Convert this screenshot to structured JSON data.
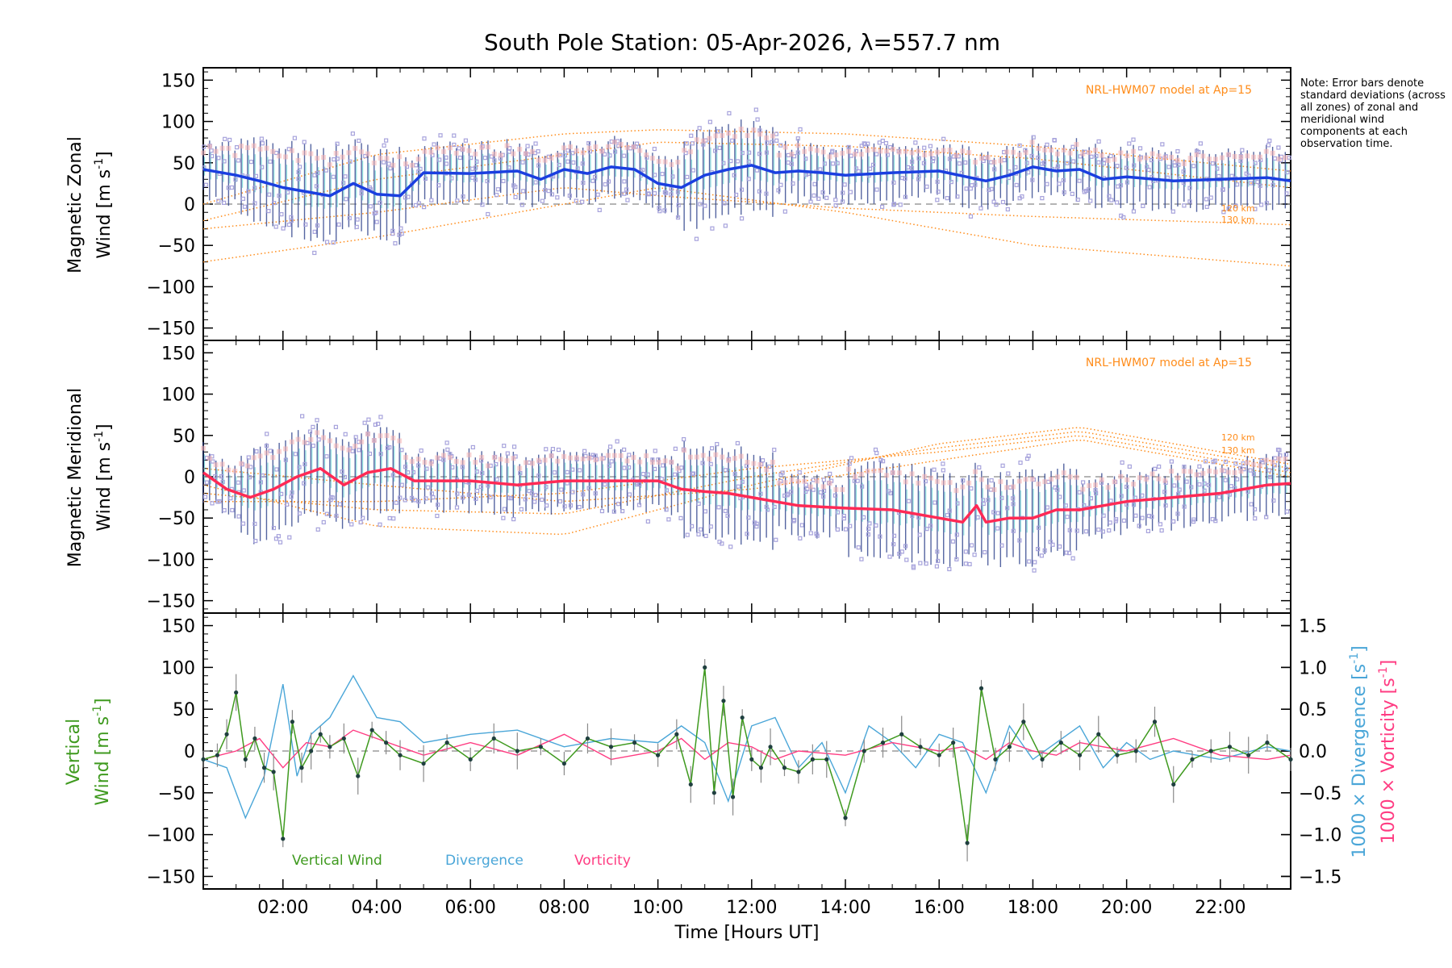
{
  "title": "South Pole Station: 05-Apr-2026, λ=557.7 nm",
  "note": "Note: Error bars denote standard deviations (across all zones) of zonal and meridional wind components at each observation time.",
  "colors": {
    "zonal_mean": "#1a3fe0",
    "meridional_mean": "#ff2a55",
    "vertical": "#3f9a1f",
    "divergence": "#4aa6d8",
    "vorticity": "#ff3c82",
    "model": "#ff8c1a",
    "scatter": "#a7a3dc"
  },
  "chart_data": [
    {
      "type": "line",
      "panel": "zonal",
      "ylabel_line1": "Magnetic Zonal",
      "ylabel_line2": "Wind [m s",
      "ylabel_exp": "-1",
      "ylabel_close": "]",
      "ylim": [
        -165,
        165
      ],
      "yticks": [
        150,
        100,
        50,
        0,
        -50,
        -100,
        -150
      ],
      "model_label": "NRL-HWM07 model at Ap=15",
      "model_alt_labels": [
        "120 km",
        "130 km"
      ],
      "model_curves": [
        {
          "x": [
            0.3,
            4,
            8,
            10,
            14,
            18,
            23.5
          ],
          "y": [
            0,
            60,
            85,
            90,
            85,
            70,
            40
          ]
        },
        {
          "x": [
            0.3,
            4,
            8,
            10,
            14,
            18,
            23.5
          ],
          "y": [
            -20,
            30,
            60,
            75,
            70,
            55,
            20
          ]
        },
        {
          "x": [
            0.3,
            4,
            8,
            10,
            14,
            18,
            23.5
          ],
          "y": [
            -70,
            -40,
            0,
            20,
            -10,
            -50,
            -75
          ]
        },
        {
          "x": [
            0.3,
            4,
            8,
            10,
            14,
            18,
            23.5
          ],
          "y": [
            -30,
            -10,
            20,
            10,
            -5,
            -15,
            -25
          ]
        }
      ],
      "mean": {
        "x": [
          0.3,
          1.0,
          1.5,
          2.0,
          2.5,
          3.0,
          3.5,
          4.0,
          4.5,
          5.0,
          6.0,
          7.0,
          7.5,
          8.0,
          8.5,
          9.0,
          9.5,
          10.0,
          10.5,
          11.0,
          11.5,
          12.0,
          12.5,
          13.0,
          13.5,
          14.0,
          15.0,
          16.0,
          17.0,
          17.5,
          18.0,
          18.5,
          19.0,
          19.5,
          20.0,
          21.0,
          22.0,
          23.0,
          23.5
        ],
        "y": [
          42,
          35,
          28,
          20,
          15,
          10,
          25,
          12,
          10,
          38,
          37,
          40,
          30,
          42,
          37,
          45,
          42,
          25,
          20,
          35,
          42,
          47,
          38,
          40,
          38,
          35,
          38,
          40,
          28,
          35,
          45,
          40,
          42,
          30,
          33,
          28,
          30,
          32,
          28
        ]
      }
    },
    {
      "type": "line",
      "panel": "meridional",
      "ylabel_line1": "Magnetic Meridional",
      "ylabel_line2": "Wind [m s",
      "ylabel_exp": "-1",
      "ylabel_close": "]",
      "ylim": [
        -165,
        165
      ],
      "yticks": [
        150,
        100,
        50,
        0,
        -50,
        -100,
        -150
      ],
      "model_label": "NRL-HWM07 model at Ap=15",
      "model_alt_labels": [
        "120 km",
        "130 km"
      ],
      "model_curves": [
        {
          "x": [
            0.3,
            4,
            8,
            12,
            16,
            19,
            23.5
          ],
          "y": [
            -10,
            -60,
            -70,
            -10,
            40,
            60,
            15
          ]
        },
        {
          "x": [
            0.3,
            4,
            8,
            12,
            16,
            19,
            23.5
          ],
          "y": [
            -20,
            -40,
            -45,
            0,
            35,
            55,
            10
          ]
        },
        {
          "x": [
            0.3,
            4,
            8,
            12,
            16,
            19,
            23.5
          ],
          "y": [
            -30,
            -30,
            -20,
            10,
            30,
            50,
            5
          ]
        },
        {
          "x": [
            0.3,
            4,
            8,
            12,
            16,
            19,
            23.5
          ],
          "y": [
            10,
            -10,
            -30,
            -15,
            20,
            45,
            0
          ]
        }
      ],
      "mean": {
        "x": [
          0.3,
          0.8,
          1.3,
          1.8,
          2.3,
          2.8,
          3.3,
          3.8,
          4.3,
          4.8,
          6.0,
          7.0,
          8.0,
          9.0,
          10.0,
          10.5,
          11.0,
          11.5,
          12.0,
          13.0,
          14.0,
          15.0,
          16.0,
          16.5,
          16.8,
          17.0,
          17.5,
          18.0,
          18.5,
          19.0,
          19.5,
          20.0,
          21.0,
          22.0,
          22.5,
          23.0,
          23.5
        ],
        "y": [
          5,
          -15,
          -25,
          -15,
          0,
          10,
          -10,
          5,
          10,
          -5,
          -5,
          -10,
          -5,
          -5,
          -5,
          -15,
          -18,
          -20,
          -25,
          -35,
          -38,
          -40,
          -50,
          -55,
          -35,
          -55,
          -50,
          -50,
          -40,
          -40,
          -35,
          -30,
          -25,
          -20,
          -15,
          -10,
          -8
        ]
      }
    },
    {
      "type": "line",
      "panel": "vertical",
      "ylabel_line1": "Vertical",
      "ylabel_line2": "Wind [m s",
      "ylabel_exp": "-1",
      "ylabel_close": "]",
      "ylim": [
        -165,
        165
      ],
      "yticks": [
        150,
        100,
        50,
        0,
        -50,
        -100,
        -150
      ],
      "y2label_a": "1000 × Divergence [s",
      "y2label_b": "1000 × Vorticity [s",
      "y2label_exp": "-1",
      "y2label_close": "]",
      "y2ticks": [
        "1.5",
        "1.0",
        "0.5",
        "0.0",
        "−0.5",
        "−1.0",
        "−1.5"
      ],
      "y2ticks_values": [
        1.5,
        1.0,
        0.5,
        0.0,
        -0.5,
        -1.0,
        -1.5
      ],
      "legend": [
        "Vertical Wind",
        "Divergence",
        "Vorticity"
      ],
      "vertical": {
        "x": [
          0.3,
          0.6,
          0.8,
          1.0,
          1.2,
          1.4,
          1.6,
          1.8,
          2.0,
          2.2,
          2.4,
          2.6,
          2.8,
          3.0,
          3.3,
          3.6,
          3.9,
          4.2,
          4.5,
          5.0,
          5.5,
          6.0,
          6.5,
          7.0,
          7.5,
          8.0,
          8.5,
          9.0,
          9.5,
          10.0,
          10.4,
          10.7,
          11.0,
          11.2,
          11.4,
          11.6,
          11.8,
          12.0,
          12.2,
          12.4,
          12.7,
          13.0,
          13.3,
          13.6,
          14.0,
          14.4,
          14.8,
          15.2,
          15.6,
          16.0,
          16.3,
          16.6,
          16.9,
          17.2,
          17.5,
          17.8,
          18.2,
          18.6,
          19.0,
          19.4,
          19.8,
          20.2,
          20.6,
          21.0,
          21.4,
          21.8,
          22.2,
          22.6,
          23.0,
          23.5
        ],
        "y": [
          -10,
          -5,
          20,
          70,
          -10,
          15,
          -20,
          -25,
          -105,
          35,
          -20,
          0,
          20,
          5,
          15,
          -30,
          25,
          10,
          -5,
          -15,
          10,
          -10,
          15,
          0,
          5,
          -15,
          15,
          5,
          10,
          -5,
          20,
          -40,
          100,
          -50,
          60,
          -55,
          40,
          -10,
          -20,
          5,
          -20,
          -25,
          -10,
          -10,
          -80,
          0,
          10,
          20,
          5,
          -5,
          10,
          -110,
          75,
          -10,
          5,
          35,
          -10,
          10,
          -5,
          20,
          -5,
          0,
          35,
          -40,
          -10,
          0,
          5,
          -5,
          10,
          -10
        ]
      },
      "divergence": {
        "x": [
          0.3,
          0.8,
          1.2,
          1.6,
          2.0,
          2.3,
          2.6,
          3.0,
          3.5,
          4.0,
          4.5,
          5.0,
          6.0,
          7.0,
          8.0,
          9.0,
          10.0,
          10.5,
          11.0,
          11.5,
          12.0,
          12.5,
          13.0,
          13.5,
          14.0,
          14.5,
          15.0,
          15.5,
          16.0,
          16.5,
          17.0,
          17.5,
          18.0,
          18.5,
          19.0,
          19.5,
          20.0,
          20.5,
          21.0,
          22.0,
          23.0,
          23.5
        ],
        "y": [
          -0.1,
          -0.2,
          -0.8,
          -0.3,
          0.8,
          -0.3,
          0.2,
          0.4,
          0.9,
          0.4,
          0.35,
          0.1,
          0.2,
          0.25,
          0.05,
          0.15,
          0.1,
          0.3,
          0.1,
          -0.6,
          0.3,
          0.4,
          -0.2,
          0.1,
          -0.5,
          0.3,
          0.1,
          -0.2,
          0.2,
          0.1,
          -0.5,
          0.3,
          -0.1,
          0.1,
          0.3,
          -0.2,
          0.1,
          -0.1,
          0.0,
          -0.1,
          0.05,
          0.0
        ]
      },
      "vorticity": {
        "x": [
          0.3,
          1.0,
          1.5,
          2.0,
          2.5,
          3.0,
          3.5,
          4.0,
          5.0,
          6.0,
          7.0,
          8.0,
          9.0,
          10.0,
          10.5,
          11.0,
          11.5,
          12.0,
          12.5,
          13.0,
          14.0,
          15.0,
          16.0,
          16.5,
          17.0,
          17.5,
          18.0,
          18.5,
          19.0,
          20.0,
          21.0,
          22.0,
          23.0,
          23.5
        ],
        "y": [
          -0.1,
          0.0,
          0.15,
          -0.2,
          0.1,
          0.05,
          0.25,
          0.15,
          -0.05,
          0.1,
          -0.05,
          0.2,
          -0.1,
          0.0,
          0.15,
          -0.1,
          0.1,
          0.05,
          -0.1,
          0.0,
          -0.05,
          0.1,
          0.0,
          0.05,
          -0.1,
          0.1,
          0.0,
          -0.05,
          0.1,
          0.0,
          0.15,
          -0.05,
          -0.1,
          -0.05
        ]
      }
    }
  ],
  "xaxis": {
    "title": "Time [Hours UT]",
    "range": [
      0.3,
      23.5
    ],
    "ticks": [
      2,
      4,
      6,
      8,
      10,
      12,
      14,
      16,
      18,
      20,
      22
    ],
    "ticklabels": [
      "02:00",
      "04:00",
      "06:00",
      "08:00",
      "10:00",
      "12:00",
      "14:00",
      "16:00",
      "18:00",
      "20:00",
      "22:00"
    ]
  }
}
